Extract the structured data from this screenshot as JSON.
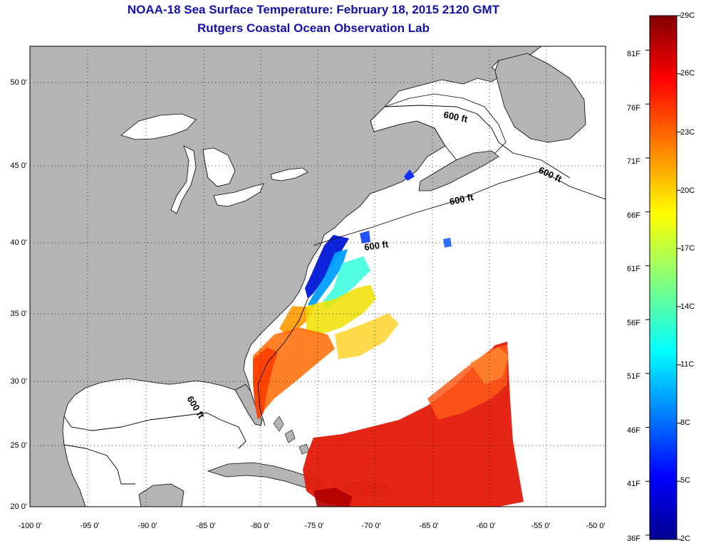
{
  "header": {
    "title": "NOAA-18 Sea Surface Temperature:  February 18, 2015 2120 GMT",
    "subtitle": "Rutgers Coastal Ocean Observation Lab"
  },
  "map": {
    "lon_range": [
      -100,
      -50
    ],
    "lat_range": [
      20,
      52
    ],
    "lat_ticks": [
      "50 0'",
      "45 0'",
      "40 0'",
      "35 0'",
      "30 0'",
      "25 0'",
      "20 0'"
    ],
    "lon_ticks": [
      "-100 0'",
      "-95 0'",
      "-90 0'",
      "-85 0'",
      "-80 0'",
      "-75 0'",
      "-70 0'",
      "-65 0'",
      "-60 0'",
      "-55 0'",
      "-50 0'"
    ],
    "isobath_labels": [
      "600 ft",
      "600 ft",
      "600 ft",
      "600 ft",
      "600 ft"
    ],
    "land_color": "#b4b4b4",
    "water_color": "#ffffff"
  },
  "colorbar": {
    "celsius": [
      "29C",
      "26C",
      "23C",
      "20C",
      "17C",
      "14C",
      "11C",
      "8C",
      "5C",
      "2C"
    ],
    "fahrenheit": [
      "81F",
      "76F",
      "71F",
      "66F",
      "61F",
      "56F",
      "51F",
      "46F",
      "41F",
      "36F"
    ],
    "min_c": 2,
    "max_c": 29
  }
}
